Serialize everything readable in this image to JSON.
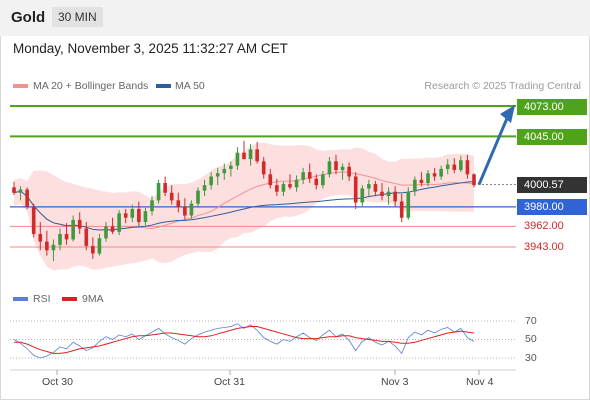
{
  "header": {
    "title": "Gold",
    "timeframe": "30 MIN"
  },
  "timestamp": "Monday, November 3, 2025 11:32:27 AM CET",
  "legend": {
    "ma20": {
      "label": "MA 20 + Bollinger Bands",
      "color": "#f39191"
    },
    "ma50": {
      "label": "MA 50",
      "color": "#2f5e9e"
    },
    "credit": "Research © 2025 Trading Central"
  },
  "rsi_legend": {
    "rsi": {
      "label": "RSI",
      "color": "#5b7fd6"
    },
    "ma": {
      "label": "9MA",
      "color": "#e02020"
    }
  },
  "colors": {
    "up": "#3f9a3f",
    "down": "#d02a2a",
    "bands": "#fdd9d9",
    "resistance": "#4fa31a",
    "support": "#3063d3",
    "target": "#f08a8a",
    "arrow": "#2f6aae",
    "current": "#333333"
  },
  "chart_data": {
    "type": "candlestick",
    "symbol": "Gold",
    "interval": "30 MIN",
    "ylim": [
      3925,
      4085
    ],
    "x_tick_labels": [
      "Oct 30",
      "Oct 31",
      "Nov 3",
      "Nov 4"
    ],
    "levels": [
      {
        "label": "4073.00",
        "value": 4073.0,
        "kind": "resistance"
      },
      {
        "label": "4045.00",
        "value": 4045.0,
        "kind": "resistance"
      },
      {
        "label": "4000.57",
        "value": 4000.57,
        "kind": "current"
      },
      {
        "label": "3980.00",
        "value": 3980.0,
        "kind": "support"
      },
      {
        "label": "3962.00",
        "value": 3962.0,
        "kind": "target"
      },
      {
        "label": "3943.00",
        "value": 3943.0,
        "kind": "target"
      }
    ],
    "projection": {
      "from": 4000.57,
      "to": 4073.0
    },
    "candles": [
      [
        3998,
        4003,
        3991,
        3993
      ],
      [
        3993,
        3999,
        3986,
        3996
      ],
      [
        3996,
        3998,
        3978,
        3980
      ],
      [
        3980,
        3983,
        3952,
        3955
      ],
      [
        3955,
        3966,
        3940,
        3948
      ],
      [
        3948,
        3958,
        3935,
        3940
      ],
      [
        3940,
        3950,
        3930,
        3945
      ],
      [
        3945,
        3960,
        3940,
        3955
      ],
      [
        3955,
        3965,
        3945,
        3950
      ],
      [
        3950,
        3972,
        3948,
        3968
      ],
      [
        3968,
        3975,
        3955,
        3960
      ],
      [
        3960,
        3966,
        3940,
        3944
      ],
      [
        3944,
        3952,
        3932,
        3937
      ],
      [
        3937,
        3955,
        3935,
        3951
      ],
      [
        3951,
        3966,
        3948,
        3962
      ],
      [
        3962,
        3970,
        3955,
        3957
      ],
      [
        3957,
        3977,
        3954,
        3974
      ],
      [
        3974,
        3978,
        3965,
        3970
      ],
      [
        3970,
        3982,
        3966,
        3978
      ],
      [
        3978,
        3985,
        3962,
        3966
      ],
      [
        3966,
        3979,
        3963,
        3976
      ],
      [
        3976,
        3990,
        3972,
        3986
      ],
      [
        3986,
        4005,
        3983,
        4002
      ],
      [
        4002,
        4008,
        3990,
        3993
      ],
      [
        3993,
        4000,
        3982,
        3986
      ],
      [
        3986,
        3993,
        3975,
        3980
      ],
      [
        3980,
        3988,
        3968,
        3972
      ],
      [
        3972,
        3986,
        3969,
        3983
      ],
      [
        3983,
        3998,
        3980,
        3995
      ],
      [
        3995,
        4005,
        3990,
        4000
      ],
      [
        4000,
        4012,
        3996,
        4008
      ],
      [
        4008,
        4016,
        4000,
        4011
      ],
      [
        4011,
        4020,
        4005,
        4015
      ],
      [
        4015,
        4022,
        4008,
        4018
      ],
      [
        4018,
        4035,
        4014,
        4030
      ],
      [
        4030,
        4041,
        4025,
        4024
      ],
      [
        4024,
        4038,
        4018,
        4033
      ],
      [
        4033,
        4040,
        4020,
        4022
      ],
      [
        4022,
        4026,
        4006,
        4010
      ],
      [
        4010,
        4015,
        3997,
        4000
      ],
      [
        4000,
        4006,
        3990,
        3994
      ],
      [
        3994,
        4003,
        3990,
        4001
      ],
      [
        4001,
        4010,
        3996,
        3998
      ],
      [
        3998,
        4009,
        3994,
        4005
      ],
      [
        4005,
        4016,
        4001,
        4012
      ],
      [
        4012,
        4020,
        4002,
        4006
      ],
      [
        4006,
        4010,
        3996,
        4000
      ],
      [
        4000,
        4013,
        3997,
        4010
      ],
      [
        4010,
        4026,
        4007,
        4022
      ],
      [
        4022,
        4028,
        4010,
        4014
      ],
      [
        4014,
        4020,
        4005,
        4017
      ],
      [
        4017,
        4021,
        4004,
        4008
      ],
      [
        4008,
        4012,
        3978,
        3984
      ],
      [
        3984,
        4000,
        3980,
        3997
      ],
      [
        3997,
        4005,
        3990,
        4001
      ],
      [
        4001,
        4004,
        3990,
        3994
      ],
      [
        3994,
        4002,
        3986,
        3990
      ],
      [
        3990,
        3998,
        3982,
        3994
      ],
      [
        3994,
        3999,
        3980,
        3985
      ],
      [
        3985,
        3992,
        3966,
        3970
      ],
      [
        3970,
        3998,
        3968,
        3994
      ],
      [
        3994,
        4008,
        3990,
        4005
      ],
      [
        4005,
        4012,
        3999,
        4002
      ],
      [
        4002,
        4014,
        3999,
        4011
      ],
      [
        4011,
        4016,
        4004,
        4008
      ],
      [
        4008,
        4018,
        4005,
        4015
      ],
      [
        4015,
        4024,
        4010,
        4019
      ],
      [
        4019,
        4025,
        4011,
        4014
      ],
      [
        4014,
        4027,
        4012,
        4023
      ],
      [
        4023,
        4028,
        4006,
        4010
      ],
      [
        4010,
        4011,
        3998,
        4000
      ]
    ],
    "rsi": {
      "ylim": [
        25,
        75
      ],
      "y_tick_labels": [
        "70",
        "50",
        "30"
      ],
      "rsi_values": [
        50,
        46,
        40,
        33,
        30,
        32,
        36,
        42,
        40,
        47,
        43,
        38,
        41,
        48,
        53,
        50,
        55,
        53,
        56,
        50,
        54,
        58,
        62,
        56,
        52,
        49,
        45,
        51,
        55,
        58,
        60,
        62,
        63,
        64,
        67,
        62,
        66,
        60,
        52,
        48,
        45,
        50,
        48,
        53,
        57,
        52,
        49,
        55,
        60,
        53,
        56,
        49,
        38,
        48,
        52,
        47,
        44,
        48,
        43,
        35,
        52,
        58,
        55,
        60,
        57,
        61,
        63,
        58,
        62,
        52,
        48
      ],
      "ma_values": [
        47,
        47,
        45,
        42,
        39,
        37,
        35,
        35,
        36,
        38,
        40,
        41,
        42,
        43,
        45,
        47,
        49,
        51,
        53,
        54,
        54,
        55,
        56,
        57,
        57,
        56,
        55,
        54,
        53,
        53,
        54,
        56,
        58,
        60,
        62,
        63,
        64,
        64,
        62,
        60,
        58,
        56,
        54,
        52,
        51,
        51,
        51,
        52,
        53,
        53,
        54,
        54,
        52,
        51,
        50,
        49,
        48,
        48,
        47,
        46,
        46,
        47,
        49,
        51,
        53,
        55,
        57,
        58,
        59,
        58,
        57
      ]
    }
  }
}
